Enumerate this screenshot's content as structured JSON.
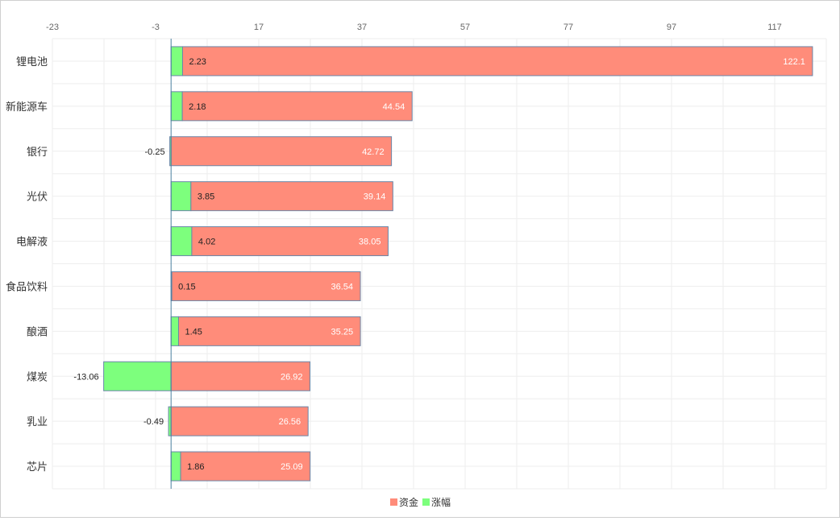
{
  "chart_data": {
    "type": "bar",
    "orientation": "horizontal",
    "categories": [
      "锂电池",
      "新能源车",
      "银行",
      "光伏",
      "电解液",
      "食品饮料",
      "酿酒",
      "煤炭",
      "乳业",
      "芯片"
    ],
    "series": [
      {
        "name": "资金",
        "color": "#ff8c7a",
        "values": [
          122.1,
          44.54,
          42.72,
          39.14,
          38.05,
          36.54,
          35.25,
          26.92,
          26.56,
          25.09
        ]
      },
      {
        "name": "涨幅",
        "color": "#7dff7d",
        "values": [
          2.23,
          2.18,
          -0.25,
          3.85,
          4.02,
          0.15,
          1.45,
          -13.06,
          -0.49,
          1.86
        ]
      }
    ],
    "xlim": [
      -23,
      127
    ],
    "xticks": [
      -23,
      -3,
      17,
      37,
      57,
      77,
      97,
      117
    ],
    "grid": true,
    "legend_position": "bottom-center",
    "axis_color": "#4a7fa0",
    "bar_border_color": "#6a86a8"
  }
}
